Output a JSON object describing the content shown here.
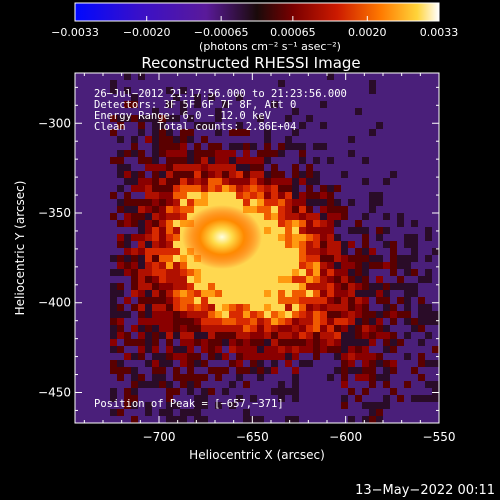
{
  "chart_data": {
    "type": "heatmap",
    "title": "Reconstructed RHESSI Image",
    "xlabel": "Heliocentric X (arcsec)",
    "ylabel": "Heliocentric Y (arcsec)",
    "xlim": [
      -745,
      -550
    ],
    "ylim": [
      -467,
      -272
    ],
    "x_ticks": [
      -700,
      -650,
      -600,
      -550
    ],
    "y_ticks": [
      -300,
      -350,
      -400,
      -450
    ],
    "x_tick_labels": [
      "−700",
      "−650",
      "−600",
      "−550"
    ],
    "y_tick_labels": [
      "−300",
      "−350",
      "−400",
      "−450"
    ],
    "colorbar": {
      "min": -0.0033,
      "max": 0.0033,
      "tick_labels": [
        "−0.0033",
        "−0.0020",
        "−0.00065",
        "0.00065",
        "0.0020",
        "0.0033"
      ],
      "unit_label": "(photons cm⁻² s⁻¹ asec⁻²)"
    },
    "annotations": [
      "26−Jul−2012 21:17:56.000 to 21:23:56.000",
      "Detectors: 3F 5F 6F 7F 8F, Att 0",
      "Energy Range: 6.0 − 12.0 keV",
      "Clean     Total counts: 2.86E+04"
    ],
    "peak_text": "Position of Peak = [−657,−371]",
    "peak": {
      "x": -657,
      "y": -371
    },
    "footer_date": "13−May−2022 00:11"
  }
}
